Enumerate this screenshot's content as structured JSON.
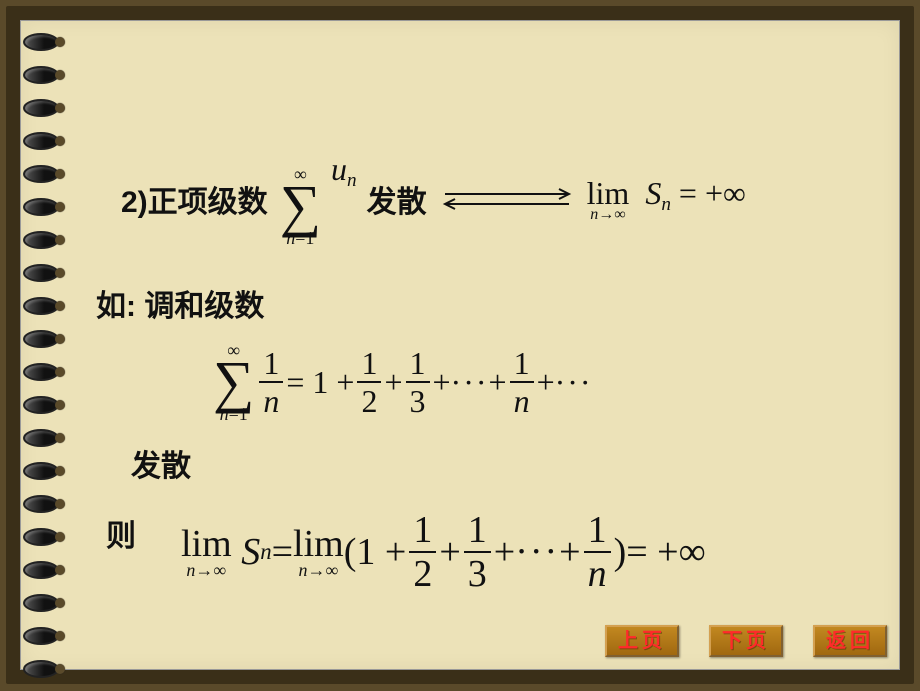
{
  "colors": {
    "page_bg": "#ece2b8",
    "outer_frame": "#3a2f18",
    "body_bg": "#5a4a2a",
    "text": "#111111",
    "button_bg": "#b07818",
    "button_text": "#ff2a2a"
  },
  "line1": {
    "prefix": "2)正项级数",
    "sum": {
      "upper": "∞",
      "lower_var": "n",
      "lower_eq": "=1",
      "term_base": "u",
      "term_sub": "n"
    },
    "diverge": "发散",
    "limit": {
      "word": "lim",
      "under_var": "n",
      "under_arrow": "→∞",
      "expr_base": "S",
      "expr_sub": "n",
      "eq": " = +∞"
    }
  },
  "line2": {
    "text": "如: 调和级数"
  },
  "line3": {
    "sum": {
      "upper": "∞",
      "lower_var": "n",
      "lower_eq": "=1"
    },
    "frac0": {
      "num": "1",
      "den": "n"
    },
    "eq": " = 1 + ",
    "frac1": {
      "num": "1",
      "den": "2"
    },
    "plus1": " + ",
    "frac2": {
      "num": "1",
      "den": "3"
    },
    "plus2": " + ",
    "dots1": "···",
    "plus3": " + ",
    "fracn": {
      "num": "1",
      "den": "n"
    },
    "plus4": " + ",
    "dots2": "···"
  },
  "line3b": {
    "text": "发散"
  },
  "line4": {
    "text": "则"
  },
  "line5": {
    "lim1": {
      "word": "lim",
      "under_var": "n",
      "under_arrow": "→∞"
    },
    "S": {
      "base": "S",
      "sub": "n"
    },
    "eq1": " = ",
    "lim2": {
      "word": "lim",
      "under_var": "n",
      "under_arrow": "→∞"
    },
    "open": "(1 + ",
    "frac1": {
      "num": "1",
      "den": "2"
    },
    "plus1": " + ",
    "frac2": {
      "num": "1",
      "den": "3"
    },
    "plus2": " + ",
    "dots": "···",
    "plus3": " + ",
    "fracn": {
      "num": "1",
      "den": "n"
    },
    "close": ")",
    "eq2": " = +∞"
  },
  "buttons": {
    "prev": "上页",
    "next": "下页",
    "back": "返回"
  }
}
